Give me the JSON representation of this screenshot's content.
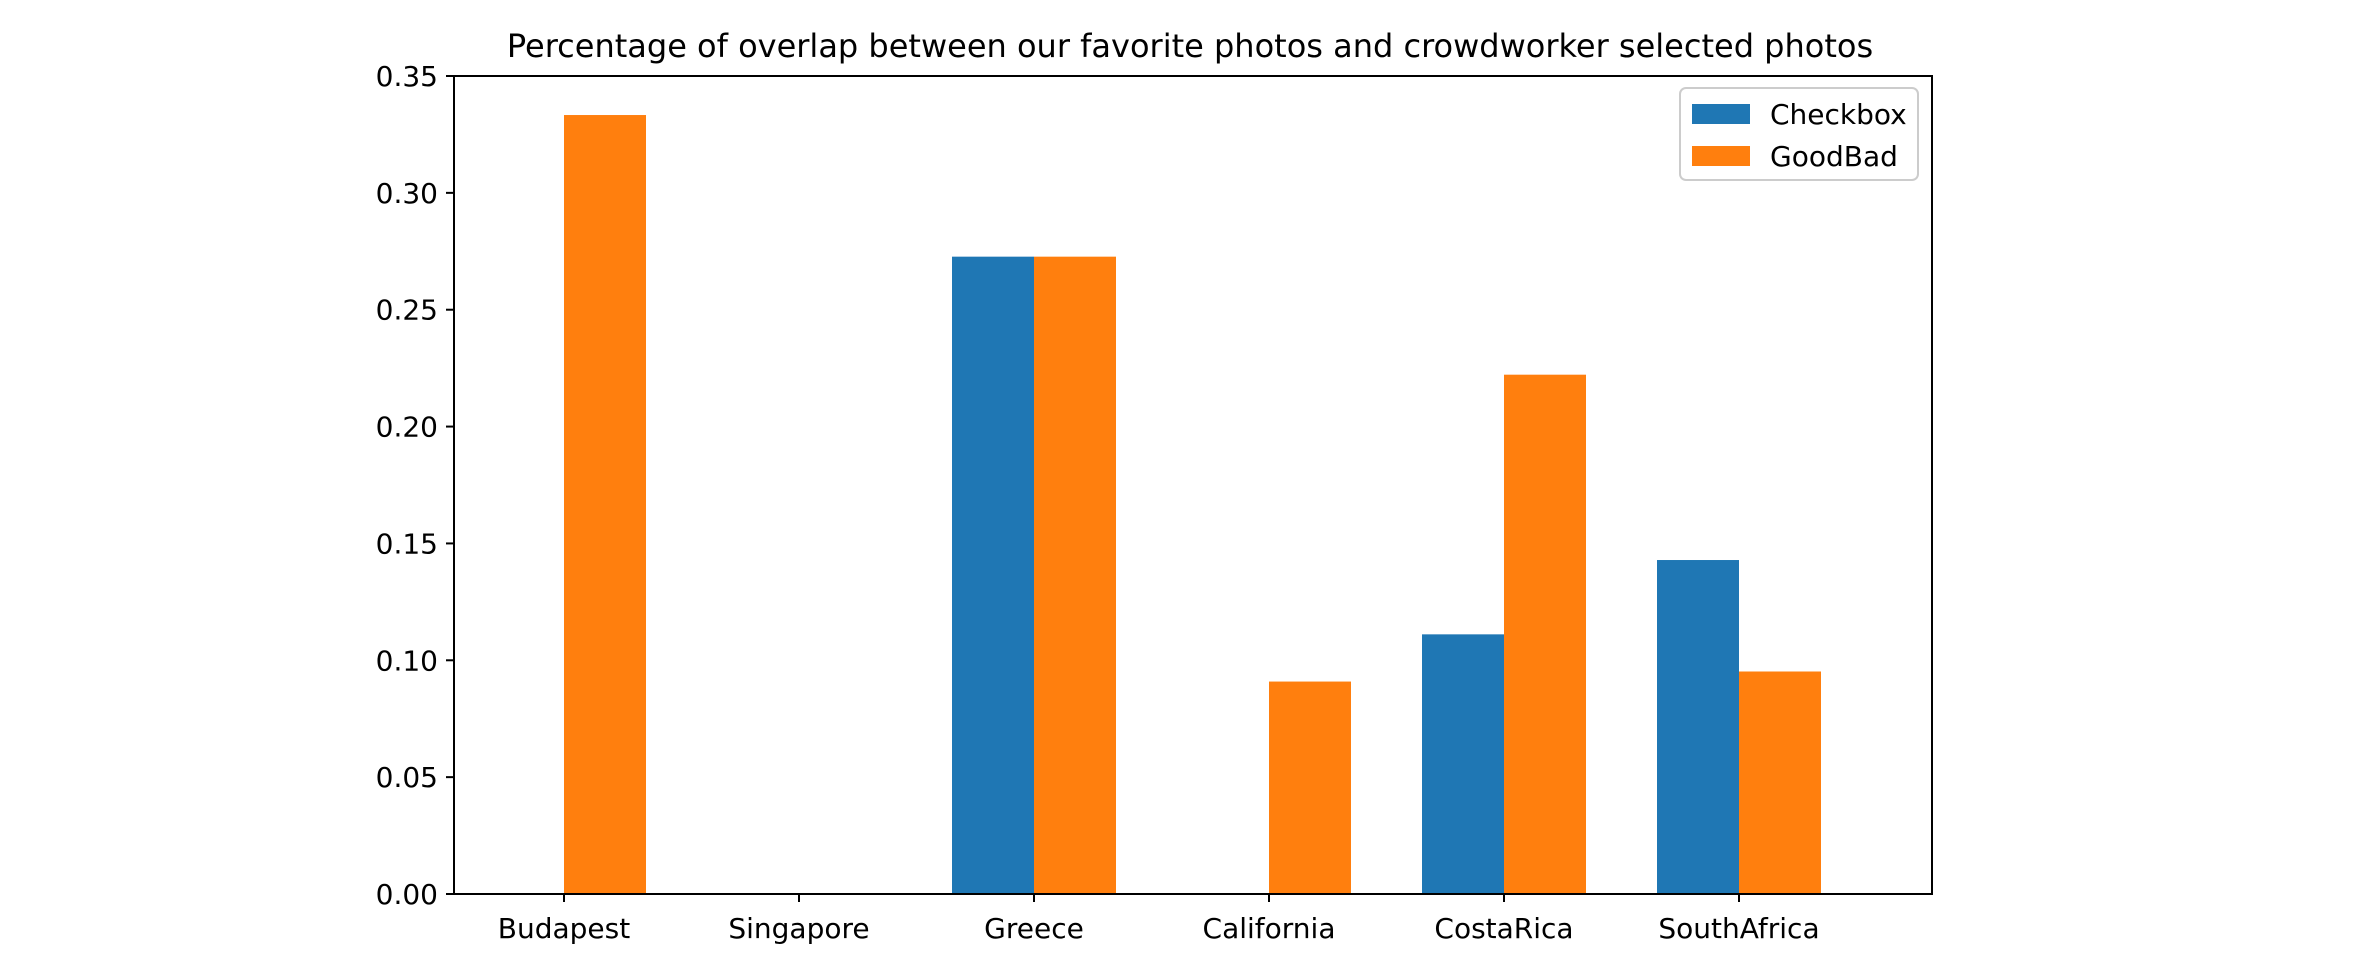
{
  "chart_data": {
    "type": "bar",
    "title": "Percentage of overlap between our favorite photos and crowdworker selected photos",
    "xlabel": "",
    "ylabel": "",
    "categories": [
      "Budapest",
      "Singapore",
      "Greece",
      "California",
      "CostaRica",
      "SouthAfrica"
    ],
    "series": [
      {
        "name": "Checkbox",
        "color": "#1f77b4",
        "values": [
          0.0,
          0.0,
          0.2727,
          0.0,
          0.1111,
          0.1429
        ]
      },
      {
        "name": "GoodBad",
        "color": "#ff7f0e",
        "values": [
          0.3333,
          0.0,
          0.2727,
          0.0909,
          0.2222,
          0.0952
        ]
      }
    ],
    "ylim": [
      0,
      0.35
    ],
    "yticks": [
      "0.00",
      "0.05",
      "0.10",
      "0.15",
      "0.20",
      "0.25",
      "0.30",
      "0.35"
    ],
    "grid": false,
    "legend_position": "top-right"
  }
}
